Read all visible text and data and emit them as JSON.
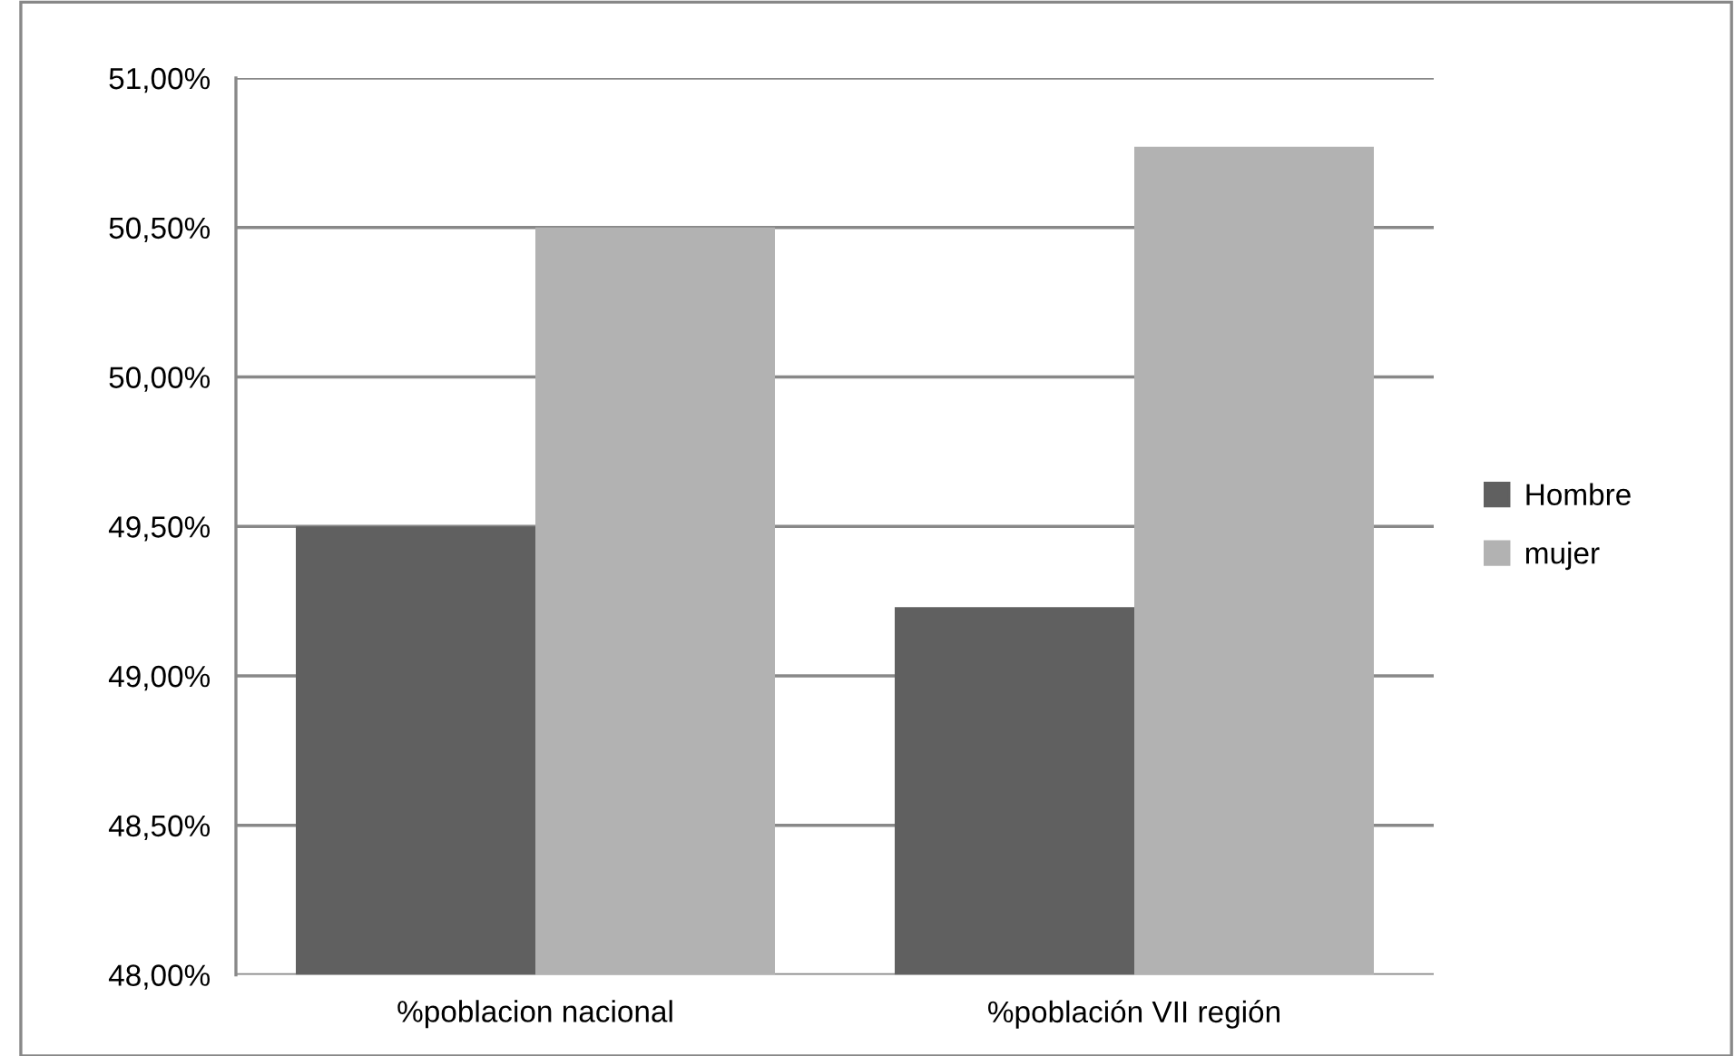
{
  "chart_data": {
    "type": "bar",
    "categories": [
      "%poblacion nacional",
      "%población VII región"
    ],
    "series": [
      {
        "name": "Hombre",
        "color": "#606060",
        "values": [
          49.5,
          49.23
        ]
      },
      {
        "name": "mujer",
        "color": "#b2b2b2",
        "values": [
          50.5,
          50.77
        ]
      }
    ],
    "ylim": [
      48,
      51
    ],
    "yticks": [
      {
        "value": 48,
        "label": "48,00%"
      },
      {
        "value": 48.5,
        "label": "48,50%"
      },
      {
        "value": 49,
        "label": "49,00%"
      },
      {
        "value": 49.5,
        "label": "49,50%"
      },
      {
        "value": 50,
        "label": "50,00%"
      },
      {
        "value": 50.5,
        "label": "50,50%"
      },
      {
        "value": 51,
        "label": "51,00%"
      }
    ],
    "grid": "y",
    "legend": "right"
  }
}
